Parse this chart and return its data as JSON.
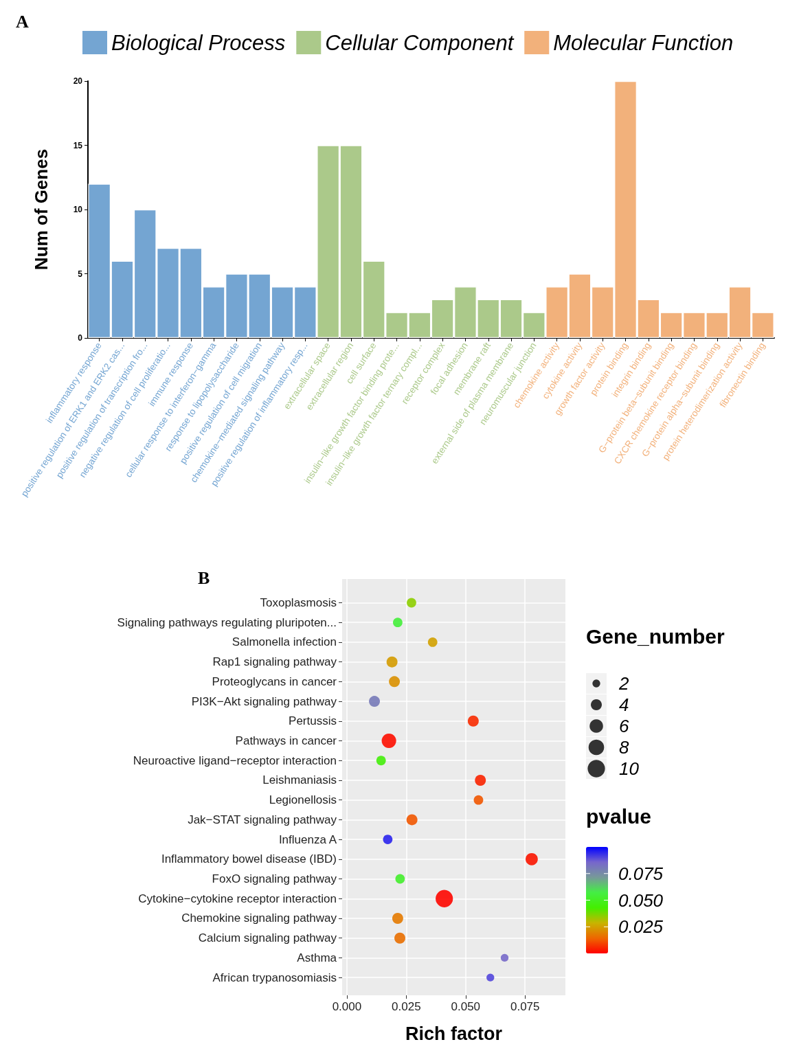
{
  "chart_data": [
    {
      "type": "bar",
      "title": "A",
      "ylabel": "Num of Genes",
      "categories": [
        "inflammatory response",
        "positive regulation of ERK1 and ERK2 cas...",
        "positive regulation of transcription fro...",
        "negative regulation of cell proliferatio...",
        "immune response",
        "cellular response to interferon−gamma",
        "response to lipopolysaccharide",
        "positive regulation of cell migration",
        "chemokine−mediated signaling pathway",
        "positive regulation of inflammatory resp...",
        "extracellular space",
        "extracellular region",
        "cell surface",
        "insulin−like growth factor binding prote...",
        "insulin−like growth factor ternary compl...",
        "receptor complex",
        "focal adhesion",
        "membrane raft",
        "external side of plasma membrane",
        "neuromuscular junction",
        "chemokine activity",
        "cytokine activity",
        "growth factor activity",
        "protein binding",
        "integrin binding",
        "G−protein beta−subunit binding",
        "CXCR chemokine receptor binding",
        "G−protein alpha−subunit binding",
        "protein heterodimerization activity",
        "fibronectin binding"
      ],
      "series": [
        {
          "name": "Biological Process",
          "color": "#74a5d2",
          "values": [
            12,
            6,
            10,
            7,
            7,
            4,
            5,
            5,
            4,
            4,
            null,
            null,
            null,
            null,
            null,
            null,
            null,
            null,
            null,
            null,
            null,
            null,
            null,
            null,
            null,
            null,
            null,
            null,
            null,
            null
          ]
        },
        {
          "name": "Cellular Component",
          "color": "#abc98a",
          "values": [
            null,
            null,
            null,
            null,
            null,
            null,
            null,
            null,
            null,
            null,
            15,
            15,
            6,
            2,
            2,
            3,
            4,
            3,
            3,
            2,
            null,
            null,
            null,
            null,
            null,
            null,
            null,
            null,
            null,
            null
          ]
        },
        {
          "name": "Molecular Function",
          "color": "#f2b17b",
          "values": [
            null,
            null,
            null,
            null,
            null,
            null,
            null,
            null,
            null,
            null,
            null,
            null,
            null,
            null,
            null,
            null,
            null,
            null,
            null,
            null,
            4,
            5,
            4,
            20,
            3,
            2,
            2,
            2,
            4,
            2
          ]
        }
      ],
      "ylim": [
        0,
        20
      ],
      "yticks": [
        0,
        5,
        10,
        15,
        20
      ],
      "grid": false,
      "legend": "top"
    },
    {
      "type": "bubble",
      "title": "B",
      "xlabel": "Rich factor",
      "legend_title": "Gene_number",
      "clabel": "pvalue",
      "orientation": "horizontal",
      "categories": [
        "Toxoplasmosis",
        "Signaling pathways regulating pluripoten...",
        "Salmonella infection",
        "Rap1 signaling pathway",
        "Proteoglycans in cancer",
        "PI3K−Akt signaling pathway",
        "Pertussis",
        "Pathways in cancer",
        "Neuroactive ligand−receptor interaction",
        "Leishmaniasis",
        "Legionellosis",
        "Jak−STAT signaling pathway",
        "Influenza A",
        "Inflammatory bowel disease (IBD)",
        "FoxO signaling pathway",
        "Cytokine−cytokine receptor interaction",
        "Chemokine signaling pathway",
        "Calcium signaling pathway",
        "Asthma",
        "African trypanosomiasis"
      ],
      "values": [
        0.0272,
        0.0214,
        0.0361,
        0.019,
        0.02,
        0.0116,
        0.0532,
        0.0177,
        0.0144,
        0.0562,
        0.0554,
        0.0274,
        0.0172,
        0.0778,
        0.0224,
        0.041,
        0.0214,
        0.0223,
        0.0664,
        0.0604
      ],
      "sizes": [
        3,
        3,
        3,
        4,
        4,
        4,
        4,
        7,
        3,
        4,
        3,
        4,
        3,
        5,
        3,
        10,
        4,
        4,
        2,
        2
      ],
      "size_legend": [
        2,
        4,
        6,
        8,
        10
      ],
      "cvalues": [
        0.035,
        0.055,
        0.025,
        0.024,
        0.022,
        0.08,
        0.006,
        0.002,
        0.045,
        0.005,
        0.012,
        0.012,
        0.095,
        0.003,
        0.052,
        0.001,
        0.018,
        0.016,
        0.085,
        0.09
      ],
      "clim": [
        0,
        0.1
      ],
      "cticks": [
        {
          "value": 0.025,
          "label": "0.025"
        },
        {
          "value": 0.05,
          "label": "0.050"
        },
        {
          "value": 0.075,
          "label": "0.075"
        }
      ],
      "xlim": [
        -0.002,
        0.092
      ],
      "xticks": [
        {
          "value": 0,
          "label": "0.000"
        },
        {
          "value": 0.025,
          "label": "0.025"
        },
        {
          "value": 0.05,
          "label": "0.050"
        },
        {
          "value": 0.075,
          "label": "0.075"
        }
      ],
      "grid": true
    }
  ]
}
